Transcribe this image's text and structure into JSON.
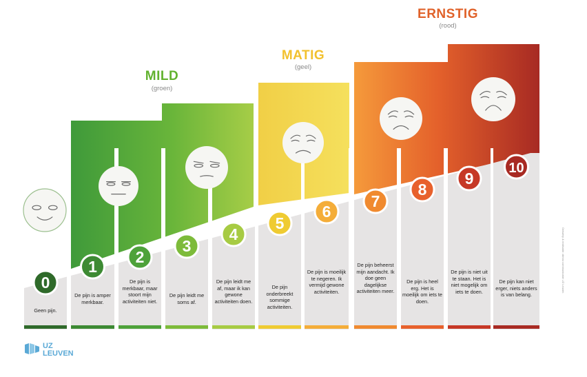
{
  "categories": [
    {
      "key": "mild",
      "title": "MILD",
      "subtitle": "(groen)",
      "color": "#62b22f"
    },
    {
      "key": "matig",
      "title": "MATIG",
      "subtitle": "(geel)",
      "color": "#f2c12e"
    },
    {
      "key": "ernstig",
      "title": "ERNSTIG",
      "subtitle": "(rood)",
      "color": "#e0622a"
    }
  ],
  "levels": [
    {
      "number": "0",
      "description": "Geen pijn.",
      "color": "#2f6a2a"
    },
    {
      "number": "1",
      "description": "De pijn is amper merkbaar.",
      "color": "#3d8a33"
    },
    {
      "number": "2",
      "description": "De pijn is merkbaar, maar stoort mijn activiteiten niet.",
      "color": "#4ea23a"
    },
    {
      "number": "3",
      "description": "De pijn leidt me soms af.",
      "color": "#7dbb3a"
    },
    {
      "number": "4",
      "description": "De pijn leidt me af, maar ik kan gewone activiteiten doen.",
      "color": "#a7cb43"
    },
    {
      "number": "5",
      "description": "De pijn onderbreekt sommige activiteiten.",
      "color": "#efcb32"
    },
    {
      "number": "6",
      "description": "De pijn is moeilijk te negeren. Ik vermijd gewone activiteiten.",
      "color": "#f4ad39"
    },
    {
      "number": "7",
      "description": "De pijn beheerst mijn aandacht. Ik doe geen dagelijkse activiteiten meer.",
      "color": "#f08a2f"
    },
    {
      "number": "8",
      "description": "De pijn is heel erg. Het is moeilijk om iets te doen.",
      "color": "#e8612c"
    },
    {
      "number": "9",
      "description": "De pijn is niet uit te staan. Het is niet mogelijk om iets te doen.",
      "color": "#c63826"
    },
    {
      "number": "10",
      "description": "De pijn kan niet erger, niets anders is van belang.",
      "color": "#a82a23"
    }
  ],
  "logo": {
    "line1": "UZ",
    "line2": "LEUVEN",
    "color": "#5aa9d6"
  },
  "credit": "Ontwerp & realisatie: dienst communicatie UZ Leuven",
  "colors": {
    "column_bg": "#e6e4e4",
    "face_fill": "#f6f6f3",
    "face_stroke": "#6b6b6b"
  }
}
